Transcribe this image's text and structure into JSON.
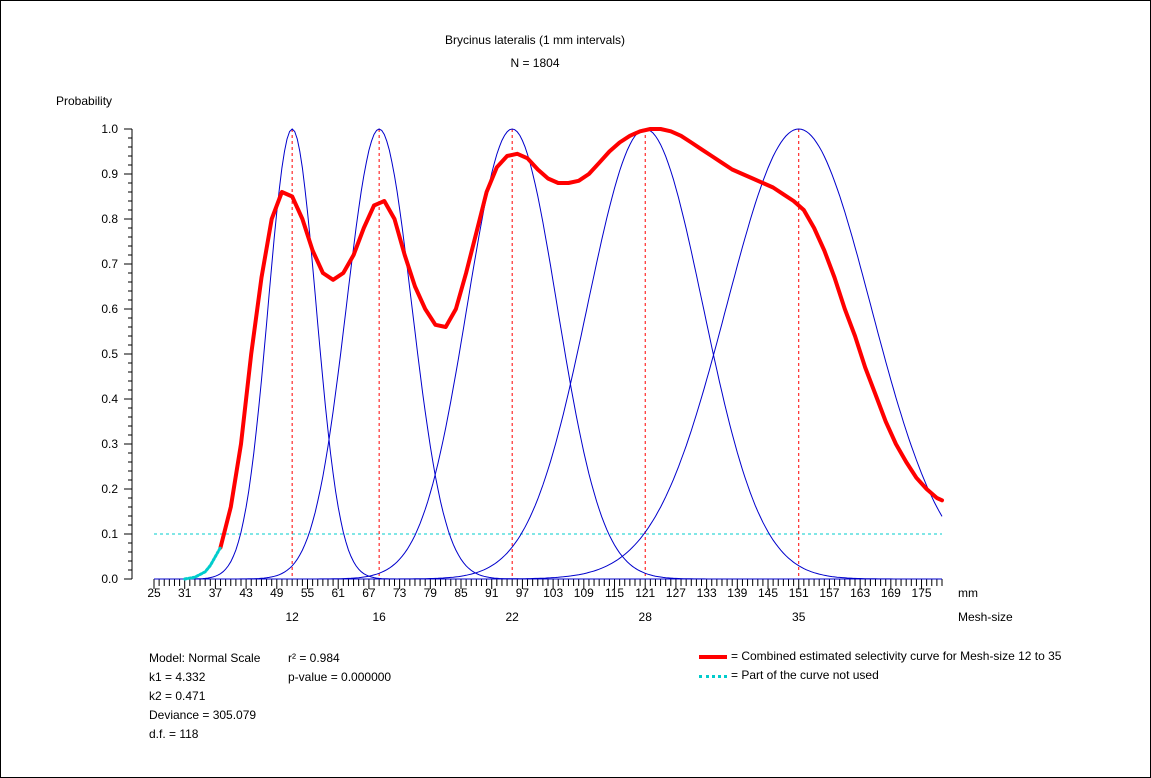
{
  "chart_data": {
    "type": "line",
    "title": "Brycinus lateralis (1 mm intervals)",
    "subtitle": "N = 1804",
    "ylabel": "Probability",
    "xlabel": "mm",
    "secondary_xlabel": "Mesh-size",
    "ylim": [
      0,
      1
    ],
    "xlim": [
      25,
      179
    ],
    "y_ticks": [
      "0.0",
      "0.1",
      "0.2",
      "0.3",
      "0.4",
      "0.5",
      "0.6",
      "0.7",
      "0.8",
      "0.9",
      "1.0"
    ],
    "x_ticks": [
      "25",
      "31",
      "37",
      "43",
      "49",
      "55",
      "61",
      "67",
      "73",
      "79",
      "85",
      "91",
      "97",
      "103",
      "109",
      "115",
      "121",
      "127",
      "133",
      "139",
      "145",
      "151",
      "157",
      "163",
      "169",
      "175"
    ],
    "mesh_sizes": [
      {
        "label": "12",
        "mode": 52
      },
      {
        "label": "16",
        "mode": 69
      },
      {
        "label": "22",
        "mode": 95
      },
      {
        "label": "28",
        "mode": 121
      },
      {
        "label": "35",
        "mode": 151
      }
    ],
    "threshold": 0.1,
    "series": [
      {
        "name": "Mesh-size 12",
        "color": "#0000cc",
        "mode": 52,
        "sd": 4.7
      },
      {
        "name": "Mesh-size 16",
        "color": "#0000cc",
        "mode": 69,
        "sd": 6.4
      },
      {
        "name": "Mesh-size 22",
        "color": "#0000cc",
        "mode": 95,
        "sd": 8.8
      },
      {
        "name": "Mesh-size 28",
        "color": "#0000cc",
        "mode": 121,
        "sd": 11.3
      },
      {
        "name": "Mesh-size 35",
        "color": "#0000cc",
        "mode": 151,
        "sd": 14.1
      },
      {
        "name": "Combined estimated selectivity curve for Mesh-size 12 to 35",
        "color": "#ff0000",
        "x": [
          38,
          40,
          42,
          44,
          46,
          48,
          50,
          52,
          54,
          56,
          58,
          60,
          62,
          64,
          66,
          68,
          70,
          72,
          74,
          76,
          78,
          80,
          82,
          84,
          86,
          88,
          90,
          92,
          94,
          96,
          98,
          100,
          102,
          104,
          106,
          108,
          110,
          112,
          114,
          116,
          118,
          120,
          122,
          124,
          126,
          128,
          130,
          132,
          134,
          136,
          138,
          140,
          142,
          144,
          146,
          148,
          150,
          152,
          154,
          156,
          158,
          160,
          162,
          164,
          166,
          168,
          170,
          172,
          174,
          176,
          178,
          179
        ],
        "y": [
          0.07,
          0.16,
          0.3,
          0.5,
          0.67,
          0.8,
          0.86,
          0.85,
          0.8,
          0.73,
          0.68,
          0.665,
          0.68,
          0.72,
          0.78,
          0.83,
          0.84,
          0.8,
          0.72,
          0.65,
          0.6,
          0.565,
          0.56,
          0.6,
          0.68,
          0.77,
          0.86,
          0.915,
          0.94,
          0.945,
          0.935,
          0.91,
          0.89,
          0.88,
          0.88,
          0.885,
          0.9,
          0.925,
          0.95,
          0.97,
          0.985,
          0.995,
          1.0,
          1.0,
          0.995,
          0.985,
          0.97,
          0.955,
          0.94,
          0.925,
          0.91,
          0.9,
          0.89,
          0.88,
          0.87,
          0.855,
          0.84,
          0.82,
          0.78,
          0.73,
          0.67,
          0.6,
          0.54,
          0.47,
          0.41,
          0.35,
          0.3,
          0.26,
          0.225,
          0.2,
          0.18,
          0.175
        ]
      },
      {
        "name": "Part of the curve not used",
        "color": "#00cccc",
        "x": [
          31,
          33,
          35,
          36,
          37,
          38
        ],
        "y": [
          0.0,
          0.004,
          0.016,
          0.03,
          0.05,
          0.07
        ]
      }
    ]
  },
  "model_info": {
    "model": "Model: Normal Scale",
    "k1": "k1 =  4.332",
    "k2": "k2 =  0.471",
    "deviance": "Deviance = 305.079",
    "df": "d.f. = 118",
    "r2": "r² = 0.984",
    "pvalue": "p-value = 0.000000"
  },
  "legend": {
    "combined": "= Combined estimated selectivity curve for Mesh-size 12 to 35",
    "unused": "= Part of the curve not used"
  }
}
